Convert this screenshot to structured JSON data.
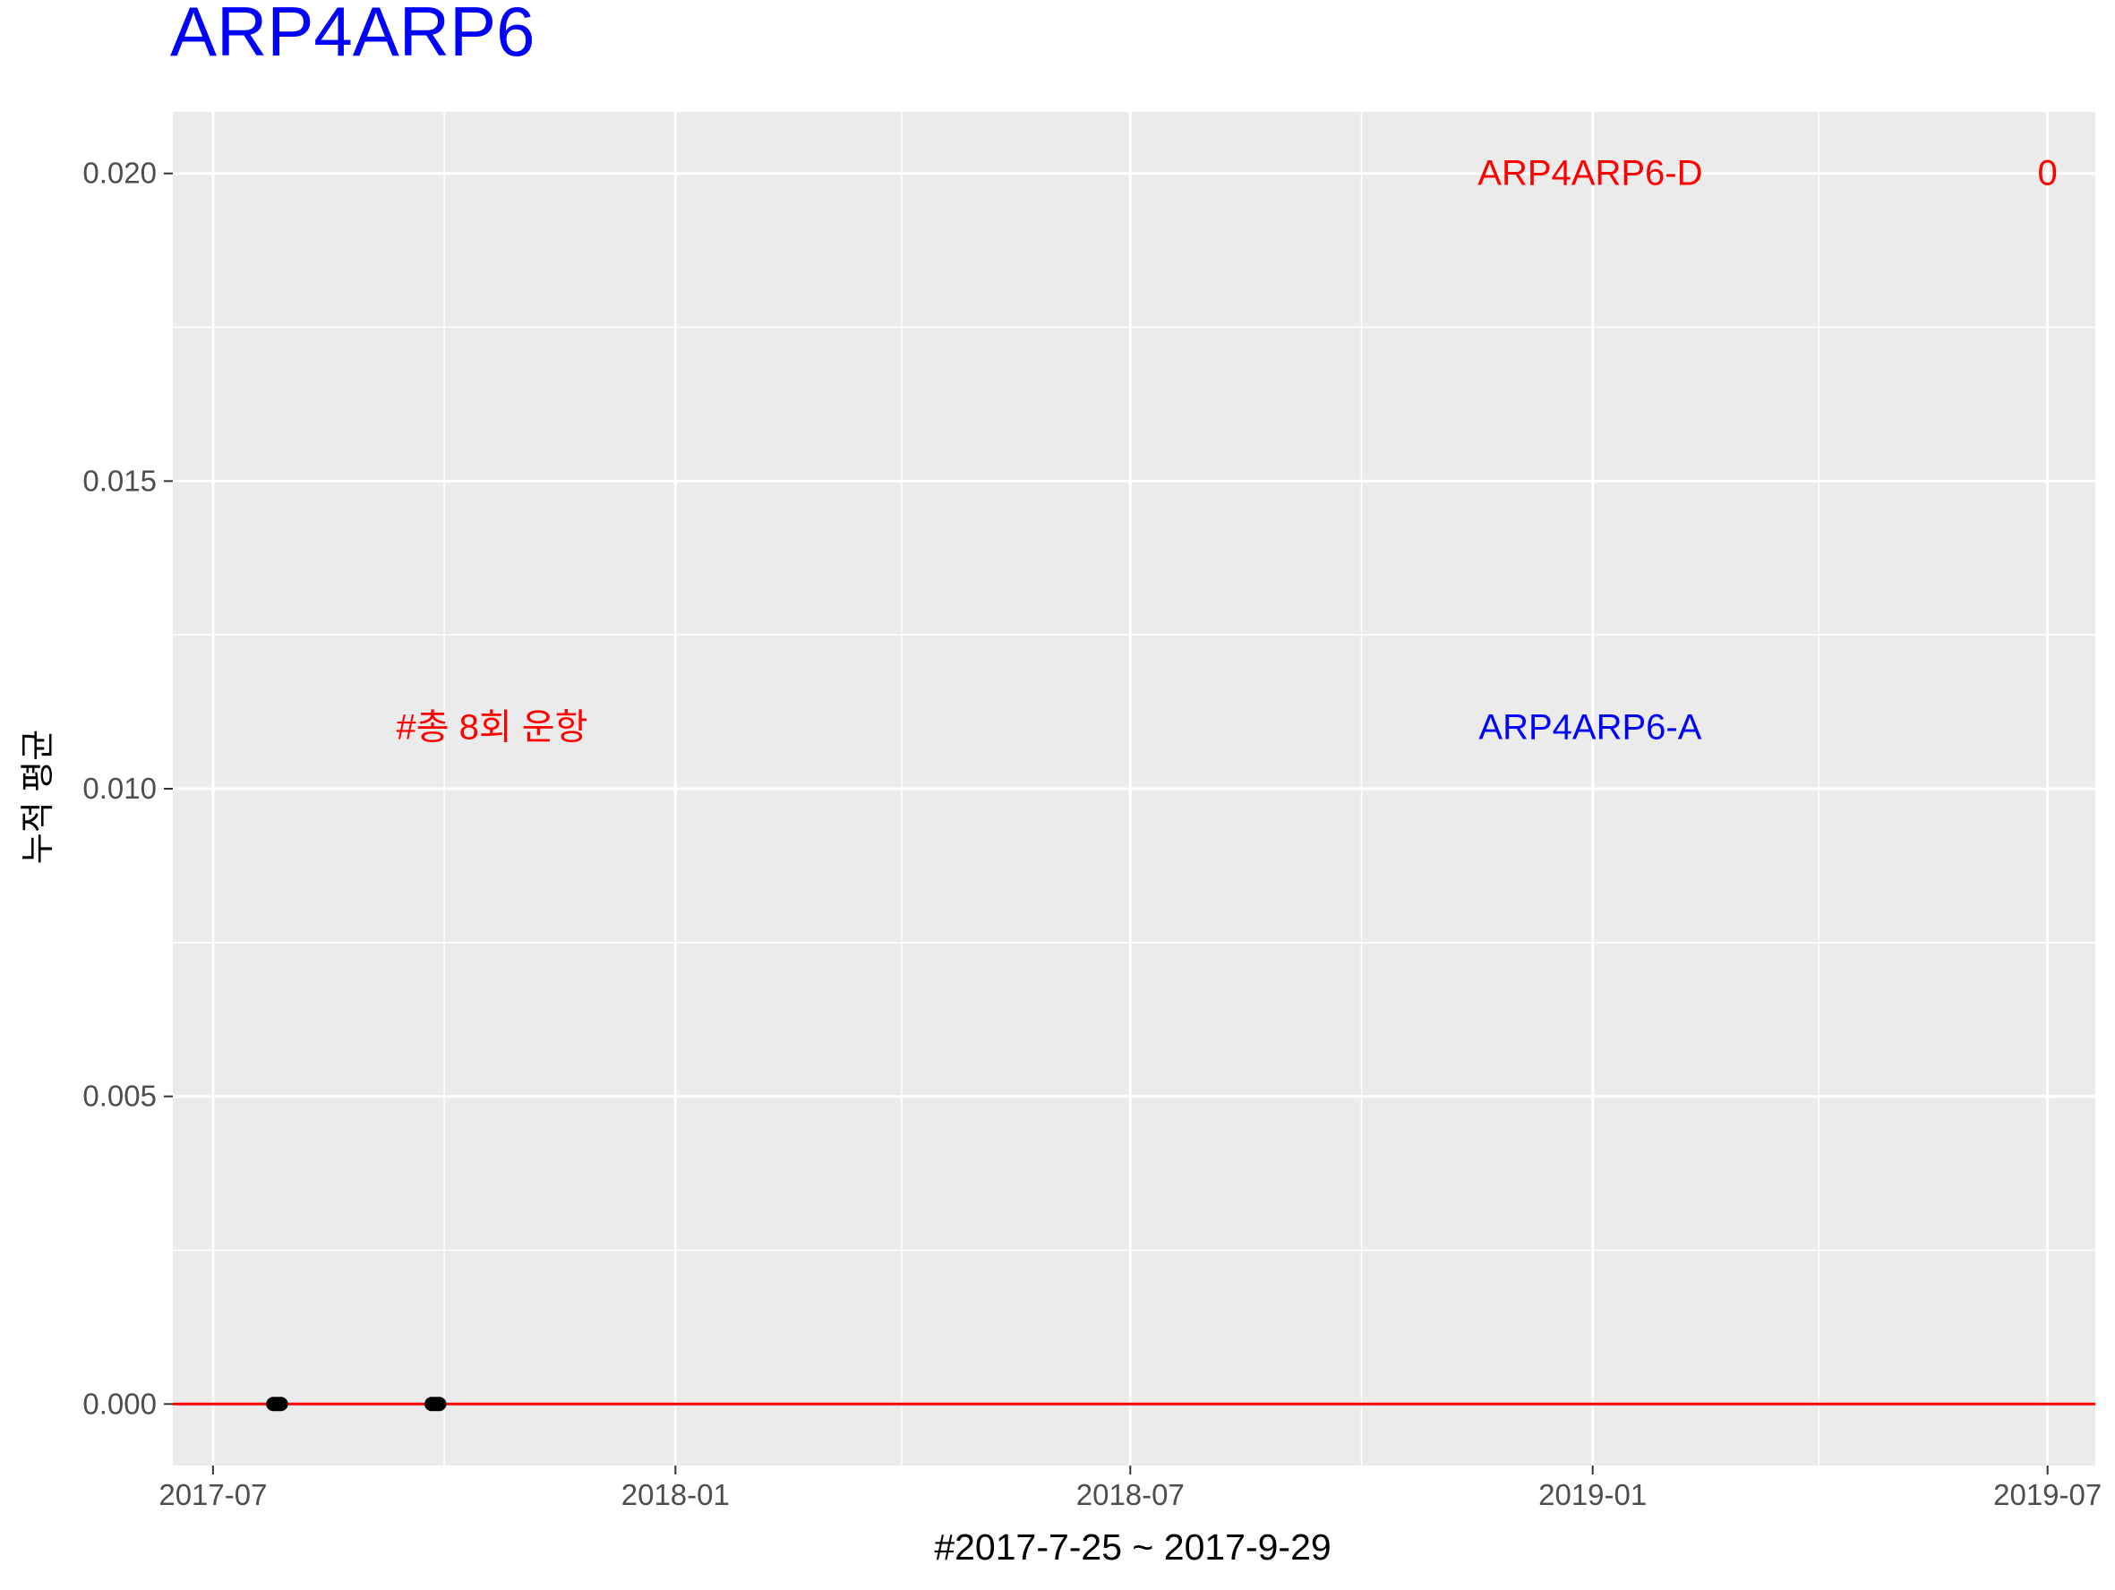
{
  "chart_data": {
    "type": "scatter",
    "title": "ARP4ARP6",
    "title_color": "#0000FF",
    "xlabel": "#2017-7-25 ~ 2017-9-29",
    "ylabel": "누적 평균",
    "x_range": [
      "2017-06-15",
      "2019-07-20"
    ],
    "x_ticks": [
      "2017-07",
      "2018-01",
      "2018-07",
      "2019-01",
      "2019-07"
    ],
    "x_tick_dates": [
      "2017-07-01",
      "2018-01-01",
      "2018-07-01",
      "2019-01-01",
      "2019-07-01"
    ],
    "x_minor_dates": [
      "2017-10-01",
      "2018-04-01",
      "2018-10-01",
      "2019-04-01"
    ],
    "ylim": [
      -0.001,
      0.021
    ],
    "y_ticks": [
      "0.000",
      "0.005",
      "0.010",
      "0.015",
      "0.020"
    ],
    "y_tick_values": [
      0.0,
      0.005,
      0.01,
      0.015,
      0.02
    ],
    "y_minor_values": [
      0.0025,
      0.0075,
      0.0125,
      0.0175
    ],
    "grid": true,
    "panel_color": "#EBEBEB",
    "grid_color": "#FFFFFF",
    "hline": {
      "value": 0.0,
      "color": "#FF0000"
    },
    "series": [
      {
        "point_color": "#000000",
        "x": [
          "2017-07-25",
          "2017-07-26",
          "2017-07-27",
          "2017-07-28",
          "2017-09-26",
          "2017-09-27",
          "2017-09-28",
          "2017-09-29"
        ],
        "y": [
          0,
          0,
          0,
          0,
          0,
          0,
          0,
          0
        ]
      }
    ],
    "annotations": [
      {
        "key": "total_runs",
        "text": "#총 8회 운항",
        "x": "2017-10-20",
        "y": 0.011,
        "color": "#FF0000"
      },
      {
        "key": "departure",
        "text": "ARP4ARP6-D",
        "x": "2018-12-31",
        "y": 0.02,
        "color": "#FF0000"
      },
      {
        "key": "arrival",
        "text": "ARP4ARP6-A",
        "x": "2018-12-31",
        "y": 0.011,
        "color": "#0000FF"
      },
      {
        "key": "value",
        "text": "0",
        "x": "2019-07-01",
        "y": 0.02,
        "color": "#FF0000"
      }
    ]
  }
}
